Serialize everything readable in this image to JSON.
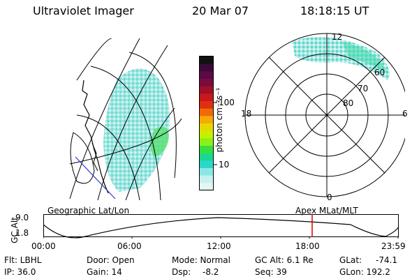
{
  "header": {
    "instrument": "Ultraviolet Imager",
    "date": "20 Mar 07",
    "time": "18:18:15 UT"
  },
  "colorbar": {
    "label": "photon cm⁻²s⁻¹",
    "ticks": [
      "100",
      "10"
    ],
    "colors": [
      "#111111",
      "#3a0a3a",
      "#5a0a46",
      "#7a0c3a",
      "#a0102a",
      "#c8181c",
      "#e02e10",
      "#f06a08",
      "#f9a905",
      "#e8d800",
      "#c6f000",
      "#8af01a",
      "#36e040",
      "#1ad890",
      "#2ad8c8",
      "#8ae8e4",
      "#c8f0ee",
      "#e4f6f4"
    ]
  },
  "left_map": {
    "caption": "Geographic Lat/Lon"
  },
  "polar_map": {
    "caption": "Apex MLat/MLT",
    "mlt_labels": [
      "12",
      "18",
      "6",
      "0"
    ],
    "lat_labels": [
      "60",
      "70",
      "80"
    ]
  },
  "altitude_strip": {
    "ylabel": "GC Alt",
    "yticks": [
      "9.0",
      "1.8"
    ],
    "xticks": [
      "00:00",
      "06:00",
      "12:00",
      "18:00",
      "23:59"
    ],
    "marker_color": "#e00000"
  },
  "info": {
    "filter": "Flt: LBHL",
    "ip": "IP: 36.0",
    "door": "Door: Open",
    "gain": "Gain: 14",
    "mode": "Mode: Normal",
    "dsp": "Dsp:",
    "dsp_value": "-8.2",
    "gc_alt": "GC Alt: 6.1 Re",
    "seq": "Seq: 39",
    "glat": "GLat:",
    "glat_value": "-74.1",
    "glon": "GLon: 192.2"
  }
}
